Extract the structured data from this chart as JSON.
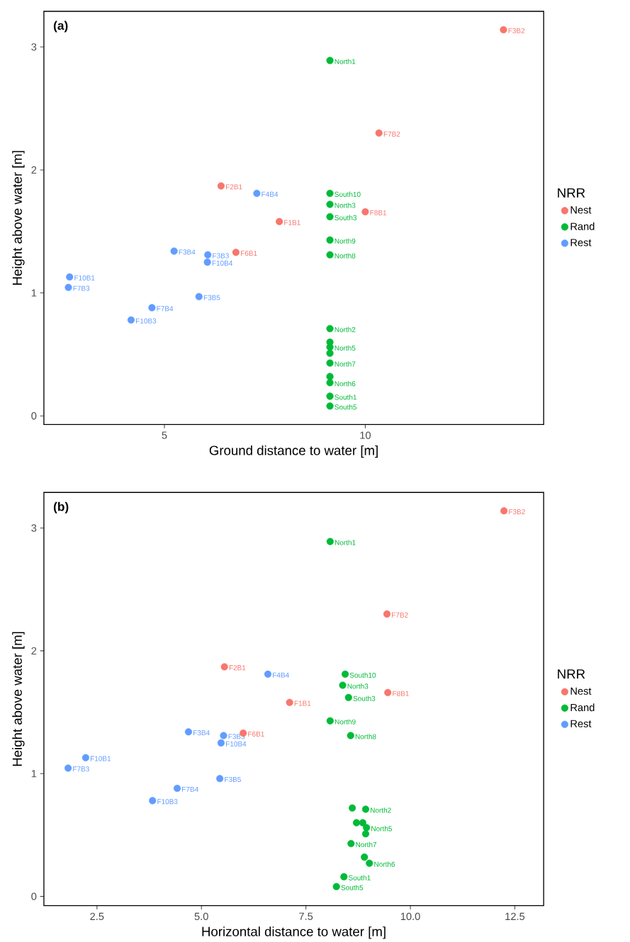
{
  "chart_data": [
    {
      "type": "scatter",
      "title": "(a)",
      "xlabel": "Ground distance to water [m]",
      "ylabel": "Height above water [m]",
      "legend_title": "NRR",
      "legend": "right",
      "marker": "circle",
      "grid": false,
      "xlim": [
        2.0,
        14.44
      ],
      "ylim": [
        -0.07,
        3.29
      ],
      "xticks": [
        5,
        10
      ],
      "yticks": [
        0,
        1,
        2,
        3
      ],
      "series": [
        {
          "name": "Nest",
          "color": "#f8766d",
          "x": [
            13.44,
            10.34,
            6.41,
            7.86,
            6.78,
            10.0
          ],
          "values": [
            3.14,
            2.3,
            1.87,
            1.58,
            1.33,
            1.66
          ]
        },
        {
          "name": "Rand",
          "color": "#00ba38",
          "x": [
            9.12,
            9.12,
            9.12,
            9.12,
            9.12,
            9.12,
            null,
            9.12,
            9.12,
            null,
            9.12,
            9.12,
            9.12,
            9.12,
            9.12,
            9.12,
            9.12
          ],
          "values": [
            2.89,
            1.81,
            1.72,
            1.62,
            1.43,
            1.31,
            null,
            0.71,
            0.6,
            null,
            0.56,
            0.51,
            0.43,
            0.32,
            0.27,
            0.16,
            0.08
          ]
        },
        {
          "name": "Rest",
          "color": "#619cff",
          "x": [
            7.3,
            5.24,
            6.08,
            6.07,
            2.64,
            2.61,
            5.86,
            4.69,
            4.17
          ],
          "values": [
            1.81,
            1.34,
            1.31,
            1.25,
            1.13,
            1.045,
            0.97,
            0.88,
            0.78
          ]
        }
      ],
      "annotations": [
        {
          "text": "F3B2",
          "x": 13.44,
          "y": 3.14
        },
        {
          "text": "F7B2",
          "x": 10.34,
          "y": 2.3
        },
        {
          "text": "F2B1",
          "x": 6.41,
          "y": 1.87
        },
        {
          "text": "F1B1",
          "x": 7.86,
          "y": 1.58
        },
        {
          "text": "F6B1",
          "x": 6.78,
          "y": 1.33
        },
        {
          "text": "F8B1",
          "x": 10.0,
          "y": 1.66
        },
        {
          "text": "North1",
          "x": 9.12,
          "y": 2.89
        },
        {
          "text": "South10",
          "x": 9.12,
          "y": 1.81
        },
        {
          "text": "North3",
          "x": 9.12,
          "y": 1.72
        },
        {
          "text": "South3",
          "x": 9.12,
          "y": 1.62
        },
        {
          "text": "North9",
          "x": 9.12,
          "y": 1.43
        },
        {
          "text": "North8",
          "x": 9.12,
          "y": 1.31
        },
        {
          "text": "North2",
          "x": 9.12,
          "y": 0.71
        },
        {
          "text": "North5",
          "x": 9.12,
          "y": 0.56
        },
        {
          "text": "North7",
          "x": 9.12,
          "y": 0.43
        },
        {
          "text": "North6",
          "x": 9.12,
          "y": 0.27
        },
        {
          "text": "South1",
          "x": 9.12,
          "y": 0.16
        },
        {
          "text": "South5",
          "x": 9.12,
          "y": 0.08
        },
        {
          "text": "F4B4",
          "x": 7.3,
          "y": 1.81
        },
        {
          "text": "F3B4",
          "x": 5.24,
          "y": 1.34
        },
        {
          "text": "F3B3",
          "x": 6.08,
          "y": 1.31
        },
        {
          "text": "F10B4",
          "x": 6.07,
          "y": 1.25
        },
        {
          "text": "F10B1",
          "x": 2.64,
          "y": 1.13
        },
        {
          "text": "F7B3",
          "x": 2.61,
          "y": 1.045
        },
        {
          "text": "F3B5",
          "x": 5.86,
          "y": 0.97
        },
        {
          "text": "F7B4",
          "x": 4.69,
          "y": 0.88
        },
        {
          "text": "F10B3",
          "x": 4.17,
          "y": 0.78
        }
      ]
    },
    {
      "type": "scatter",
      "title": "(b)",
      "xlabel": "Horizontal distance to water [m]",
      "ylabel": "Height above water [m]",
      "legend_title": "NRR",
      "legend": "right",
      "marker": "circle",
      "grid": false,
      "xlim": [
        1.23,
        13.19
      ],
      "ylim": [
        -0.075,
        3.29
      ],
      "xticks": [
        {
          "value": 2.5,
          "label": "2.5"
        },
        {
          "value": 5,
          "label": "5.0"
        },
        {
          "value": 7.5,
          "label": "7.5"
        },
        {
          "value": 10,
          "label": "10.0"
        },
        {
          "value": 12.5,
          "label": "12.5"
        }
      ],
      "yticks": [
        0,
        1,
        2,
        3
      ],
      "series": [
        {
          "name": "Nest",
          "color": "#f8766d",
          "x": [
            12.24,
            9.44,
            5.55,
            7.11,
            6.0,
            9.46
          ],
          "values": [
            3.14,
            2.3,
            1.87,
            1.58,
            1.33,
            1.66
          ]
        },
        {
          "name": "Rand",
          "color": "#00ba38",
          "x": [
            8.08,
            8.44,
            8.38,
            8.52,
            8.08,
            8.57,
            8.61,
            8.93,
            8.71,
            8.86,
            8.95,
            8.93,
            8.58,
            8.9,
            9.02,
            8.41,
            8.23
          ],
          "values": [
            2.89,
            1.81,
            1.72,
            1.62,
            1.43,
            1.31,
            0.72,
            0.71,
            0.6,
            0.6,
            0.56,
            0.51,
            0.43,
            0.32,
            0.27,
            0.16,
            0.08
          ]
        },
        {
          "name": "Rest",
          "color": "#619cff",
          "x": [
            6.59,
            4.69,
            5.53,
            5.47,
            2.23,
            1.81,
            5.44,
            4.42,
            3.83
          ],
          "values": [
            1.81,
            1.34,
            1.31,
            1.25,
            1.13,
            1.045,
            0.96,
            0.88,
            0.78
          ]
        }
      ],
      "annotations": [
        {
          "text": "F3B2",
          "x": 12.24,
          "y": 3.14
        },
        {
          "text": "F7B2",
          "x": 9.44,
          "y": 2.3
        },
        {
          "text": "F2B1",
          "x": 5.55,
          "y": 1.87
        },
        {
          "text": "F1B1",
          "x": 7.11,
          "y": 1.58
        },
        {
          "text": "F6B1",
          "x": 6.0,
          "y": 1.33
        },
        {
          "text": "F8B1",
          "x": 9.46,
          "y": 1.66
        },
        {
          "text": "North1",
          "x": 8.08,
          "y": 2.89
        },
        {
          "text": "South10",
          "x": 8.44,
          "y": 1.81
        },
        {
          "text": "North3",
          "x": 8.38,
          "y": 1.72
        },
        {
          "text": "South3",
          "x": 8.52,
          "y": 1.62
        },
        {
          "text": "North9",
          "x": 8.08,
          "y": 1.43
        },
        {
          "text": "North8",
          "x": 8.57,
          "y": 1.31
        },
        {
          "text": "North2",
          "x": 8.93,
          "y": 0.71
        },
        {
          "text": "North5",
          "x": 8.95,
          "y": 0.56
        },
        {
          "text": "North7",
          "x": 8.58,
          "y": 0.43
        },
        {
          "text": "North6",
          "x": 9.02,
          "y": 0.27
        },
        {
          "text": "South1",
          "x": 8.41,
          "y": 0.16
        },
        {
          "text": "South5",
          "x": 8.23,
          "y": 0.08
        },
        {
          "text": "F4B4",
          "x": 6.59,
          "y": 1.81
        },
        {
          "text": "F3B4",
          "x": 4.69,
          "y": 1.34
        },
        {
          "text": "F3B3",
          "x": 5.53,
          "y": 1.31
        },
        {
          "text": "F10B4",
          "x": 5.47,
          "y": 1.25
        },
        {
          "text": "F10B1",
          "x": 2.23,
          "y": 1.13
        },
        {
          "text": "F7B3",
          "x": 1.81,
          "y": 1.045
        },
        {
          "text": "F3B5",
          "x": 5.44,
          "y": 0.96
        },
        {
          "text": "F7B4",
          "x": 4.42,
          "y": 0.88
        },
        {
          "text": "F10B3",
          "x": 3.83,
          "y": 0.78
        }
      ]
    }
  ]
}
